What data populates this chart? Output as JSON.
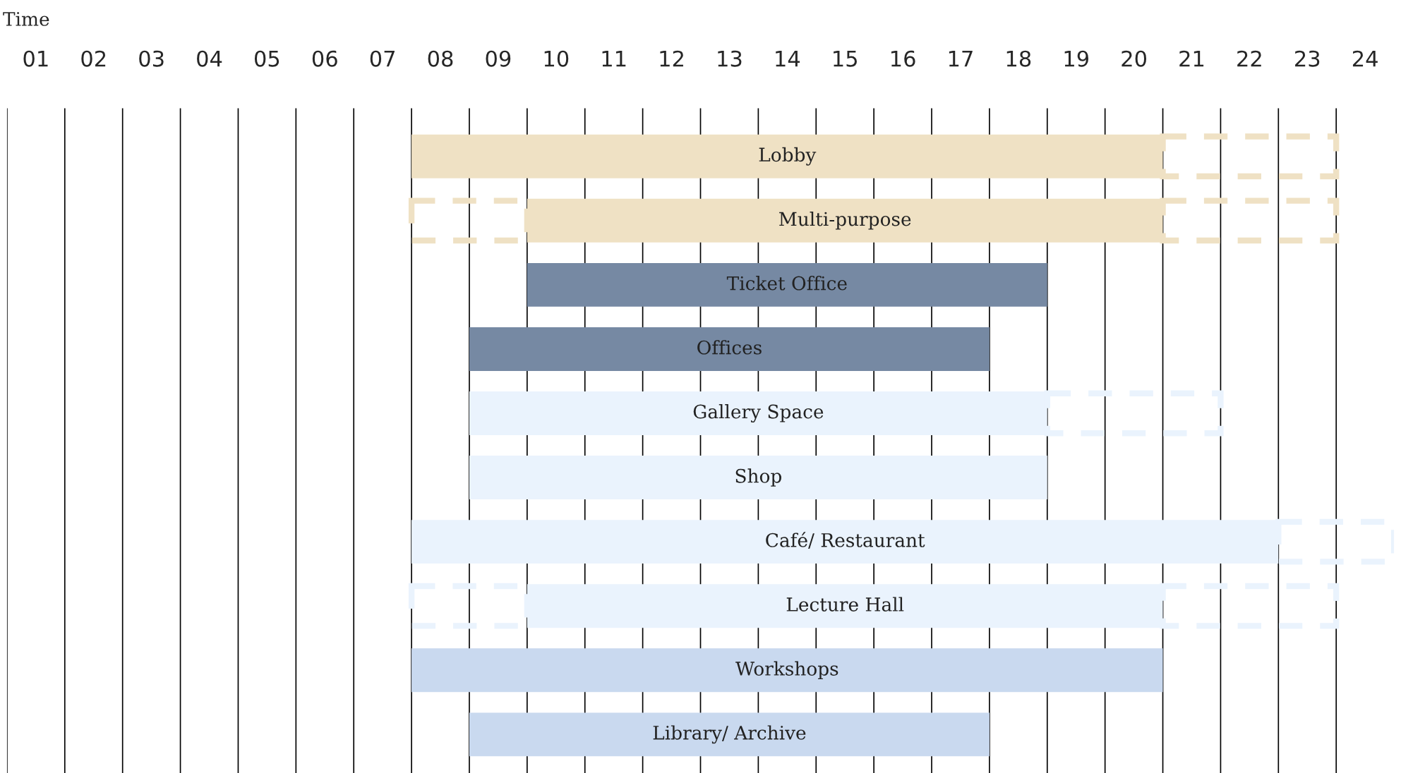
{
  "chart_data": {
    "type": "bar",
    "orientation": "horizontal",
    "xlabel": "Time",
    "categories": [
      "Lobby",
      "Multi-purpose",
      "Ticket Office",
      "Offices",
      "Gallery Space",
      "Shop",
      "Café/ Restaurant",
      "Lecture Hall",
      "Workshops",
      "Library/ Archive"
    ],
    "series": [
      {
        "line_style": "solid",
        "base": [
          7,
          9,
          9,
          8,
          8,
          8,
          7,
          9,
          7,
          8
        ],
        "values": [
          13,
          11,
          9,
          9,
          10,
          10,
          15,
          11,
          13,
          9
        ],
        "colors": [
          "#efe1c4",
          "#efe1c4",
          "#7689a3",
          "#7689a3",
          "#eaf3fd",
          "#eaf3fd",
          "#eaf3fd",
          "#eaf3fd",
          "#c9d9ef",
          "#c9d9ef"
        ]
      },
      {
        "line_style": "dashed",
        "base": [
          null,
          7,
          null,
          null,
          null,
          null,
          null,
          7,
          null,
          null
        ],
        "values": [
          null,
          2,
          null,
          null,
          null,
          null,
          null,
          2,
          null,
          null
        ],
        "colors": [
          "#efe1c4",
          "#efe1c4",
          "#7689a3",
          "#7689a3",
          "#eaf3fd",
          "#eaf3fd",
          "#eaf3fd",
          "#eaf3fd",
          "#c9d9ef",
          "#c9d9ef"
        ]
      },
      {
        "line_style": "dashed",
        "base": [
          20,
          20,
          null,
          null,
          18,
          null,
          22,
          20,
          null,
          null
        ],
        "values": [
          3,
          3,
          null,
          null,
          3,
          null,
          2,
          3,
          null,
          null
        ],
        "colors": [
          "#efe1c4",
          "#efe1c4",
          "#7689a3",
          "#7689a3",
          "#eaf3fd",
          "#eaf3fd",
          "#eaf3fd",
          "#eaf3fd",
          "#c9d9ef",
          "#c9d9ef"
        ]
      }
    ],
    "xlim": [
      0,
      24
    ],
    "xticks": [
      {
        "value": 0.5,
        "label": "01"
      },
      {
        "value": 1.5,
        "label": "02"
      },
      {
        "value": 2.5,
        "label": "03"
      },
      {
        "value": 3.5,
        "label": "04"
      },
      {
        "value": 4.5,
        "label": "05"
      },
      {
        "value": 5.5,
        "label": "06"
      },
      {
        "value": 6.5,
        "label": "07"
      },
      {
        "value": 7.5,
        "label": "08"
      },
      {
        "value": 8.5,
        "label": "09"
      },
      {
        "value": 9.5,
        "label": "10"
      },
      {
        "value": 10.5,
        "label": "11"
      },
      {
        "value": 11.5,
        "label": "12"
      },
      {
        "value": 12.5,
        "label": "13"
      },
      {
        "value": 13.5,
        "label": "14"
      },
      {
        "value": 14.5,
        "label": "15"
      },
      {
        "value": 15.5,
        "label": "16"
      },
      {
        "value": 16.5,
        "label": "17"
      },
      {
        "value": 17.5,
        "label": "18"
      },
      {
        "value": 18.5,
        "label": "19"
      },
      {
        "value": 19.5,
        "label": "20"
      },
      {
        "value": 20.5,
        "label": "21"
      },
      {
        "value": 21.5,
        "label": "22"
      },
      {
        "value": 22.5,
        "label": "23"
      },
      {
        "value": 23.5,
        "label": "24"
      }
    ],
    "ref_lines": [
      {
        "axis": "x",
        "value": 0,
        "color": "#000000"
      },
      {
        "axis": "x",
        "value": 1,
        "color": "#000000"
      },
      {
        "axis": "x",
        "value": 2,
        "color": "#000000"
      },
      {
        "axis": "x",
        "value": 3,
        "color": "#000000"
      },
      {
        "axis": "x",
        "value": 4,
        "color": "#000000"
      },
      {
        "axis": "x",
        "value": 5,
        "color": "#000000"
      },
      {
        "axis": "x",
        "value": 6,
        "color": "#000000"
      },
      {
        "axis": "x",
        "value": 7,
        "color": "#000000"
      },
      {
        "axis": "x",
        "value": 8,
        "color": "#000000"
      },
      {
        "axis": "x",
        "value": 9,
        "color": "#000000"
      },
      {
        "axis": "x",
        "value": 10,
        "color": "#000000"
      },
      {
        "axis": "x",
        "value": 11,
        "color": "#000000"
      },
      {
        "axis": "x",
        "value": 12,
        "color": "#000000"
      },
      {
        "axis": "x",
        "value": 13,
        "color": "#000000"
      },
      {
        "axis": "x",
        "value": 14,
        "color": "#000000"
      },
      {
        "axis": "x",
        "value": 15,
        "color": "#000000"
      },
      {
        "axis": "x",
        "value": 16,
        "color": "#000000"
      },
      {
        "axis": "x",
        "value": 17,
        "color": "#000000"
      },
      {
        "axis": "x",
        "value": 18,
        "color": "#000000"
      },
      {
        "axis": "x",
        "value": 19,
        "color": "#000000"
      },
      {
        "axis": "x",
        "value": 20,
        "color": "#000000"
      },
      {
        "axis": "x",
        "value": 21,
        "color": "#000000"
      },
      {
        "axis": "x",
        "value": 22,
        "color": "#000000"
      },
      {
        "axis": "x",
        "value": 23,
        "color": "#000000"
      }
    ],
    "tick_labels": "x",
    "grid": false,
    "legend": false
  }
}
